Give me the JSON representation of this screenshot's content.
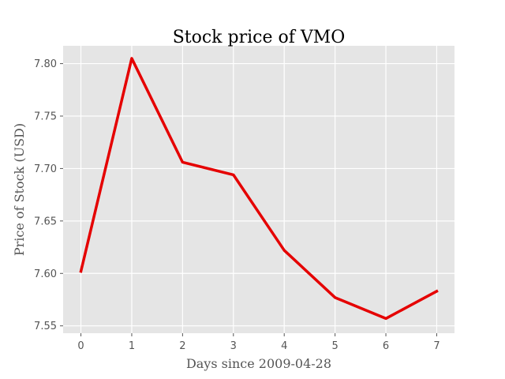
{
  "chart_data": {
    "type": "line",
    "title": "Stock price of VMO",
    "xlabel": "Days since 2009-04-28",
    "ylabel": "Price of Stock (USD)",
    "x": [
      0,
      1,
      2,
      3,
      4,
      5,
      6,
      7
    ],
    "series": [
      {
        "values": [
          7.602,
          7.805,
          7.706,
          7.694,
          7.622,
          7.577,
          7.557,
          7.583
        ]
      }
    ],
    "xlim": [
      -0.35,
      7.35
    ],
    "ylim": [
      7.543,
      7.817
    ],
    "xticks": [
      0,
      1,
      2,
      3,
      4,
      5,
      6,
      7
    ],
    "yticks": [
      7.55,
      7.6,
      7.65,
      7.7,
      7.75,
      7.8
    ],
    "ytick_labels": [
      "7.55",
      "7.60",
      "7.65",
      "7.70",
      "7.75",
      "7.80"
    ],
    "grid": true,
    "background_color": "#e5e5e5",
    "line_color": "#e50000"
  }
}
